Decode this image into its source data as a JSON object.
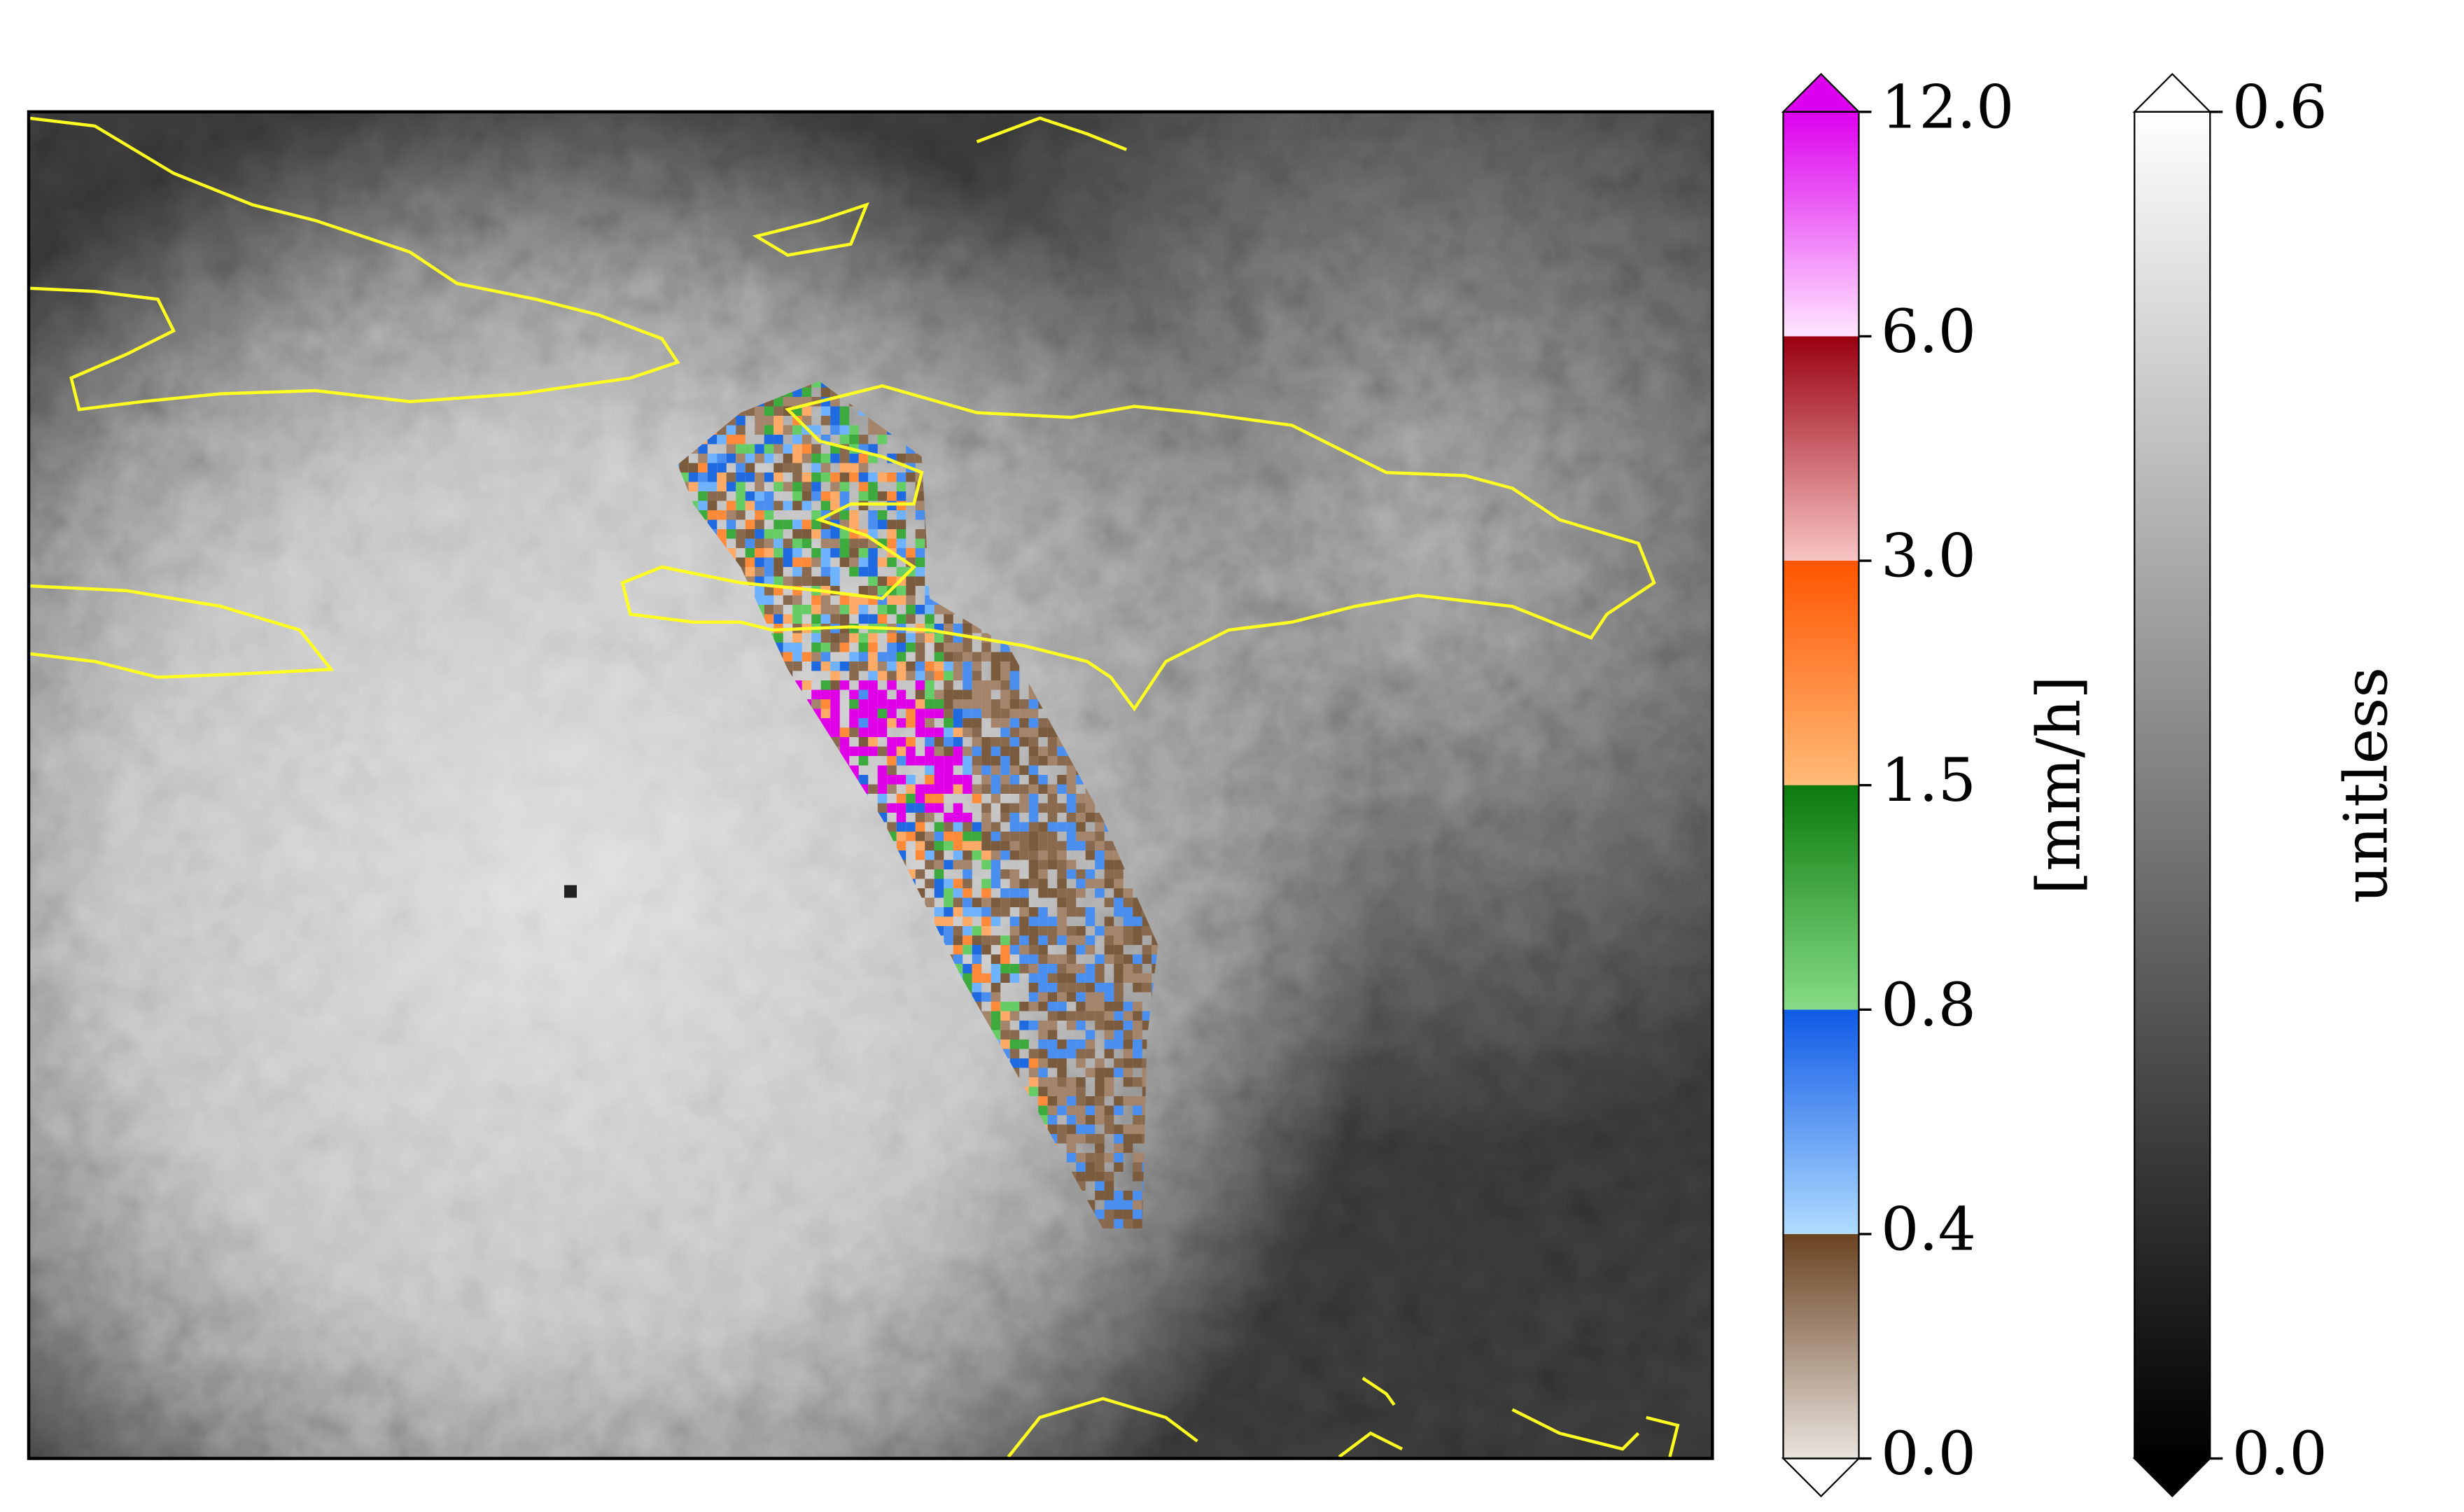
{
  "colorbars": [
    {
      "label": "[mm/h]",
      "ticks": [
        {
          "value": 0,
          "label": "0.0"
        },
        {
          "value": 0.4,
          "label": "0.4"
        },
        {
          "value": 0.8,
          "label": "0.8"
        },
        {
          "value": 1.5,
          "label": "1.5"
        },
        {
          "value": 3,
          "label": "3.0"
        },
        {
          "value": 6,
          "label": "6.0"
        },
        {
          "value": 12,
          "label": "12.0"
        }
      ],
      "colors": [
        [
          "#e9e3de",
          "#6a4321"
        ],
        [
          "#b0dcff",
          "#0f5ae6"
        ],
        [
          "#86dc86",
          "#0b7a0b"
        ],
        [
          "#ffbb77",
          "#ff5500"
        ],
        [
          "#f8c4c4",
          "#9a0010"
        ],
        [
          "#ffe6ff",
          "#dd00ee"
        ]
      ]
    },
    {
      "label": "unitless",
      "ticks": [
        {
          "value": 0,
          "label": "0.0"
        },
        {
          "value": 0.6,
          "label": "0.6"
        }
      ],
      "colors": [
        [
          "#000000",
          "#ffffff"
        ]
      ]
    }
  ]
}
